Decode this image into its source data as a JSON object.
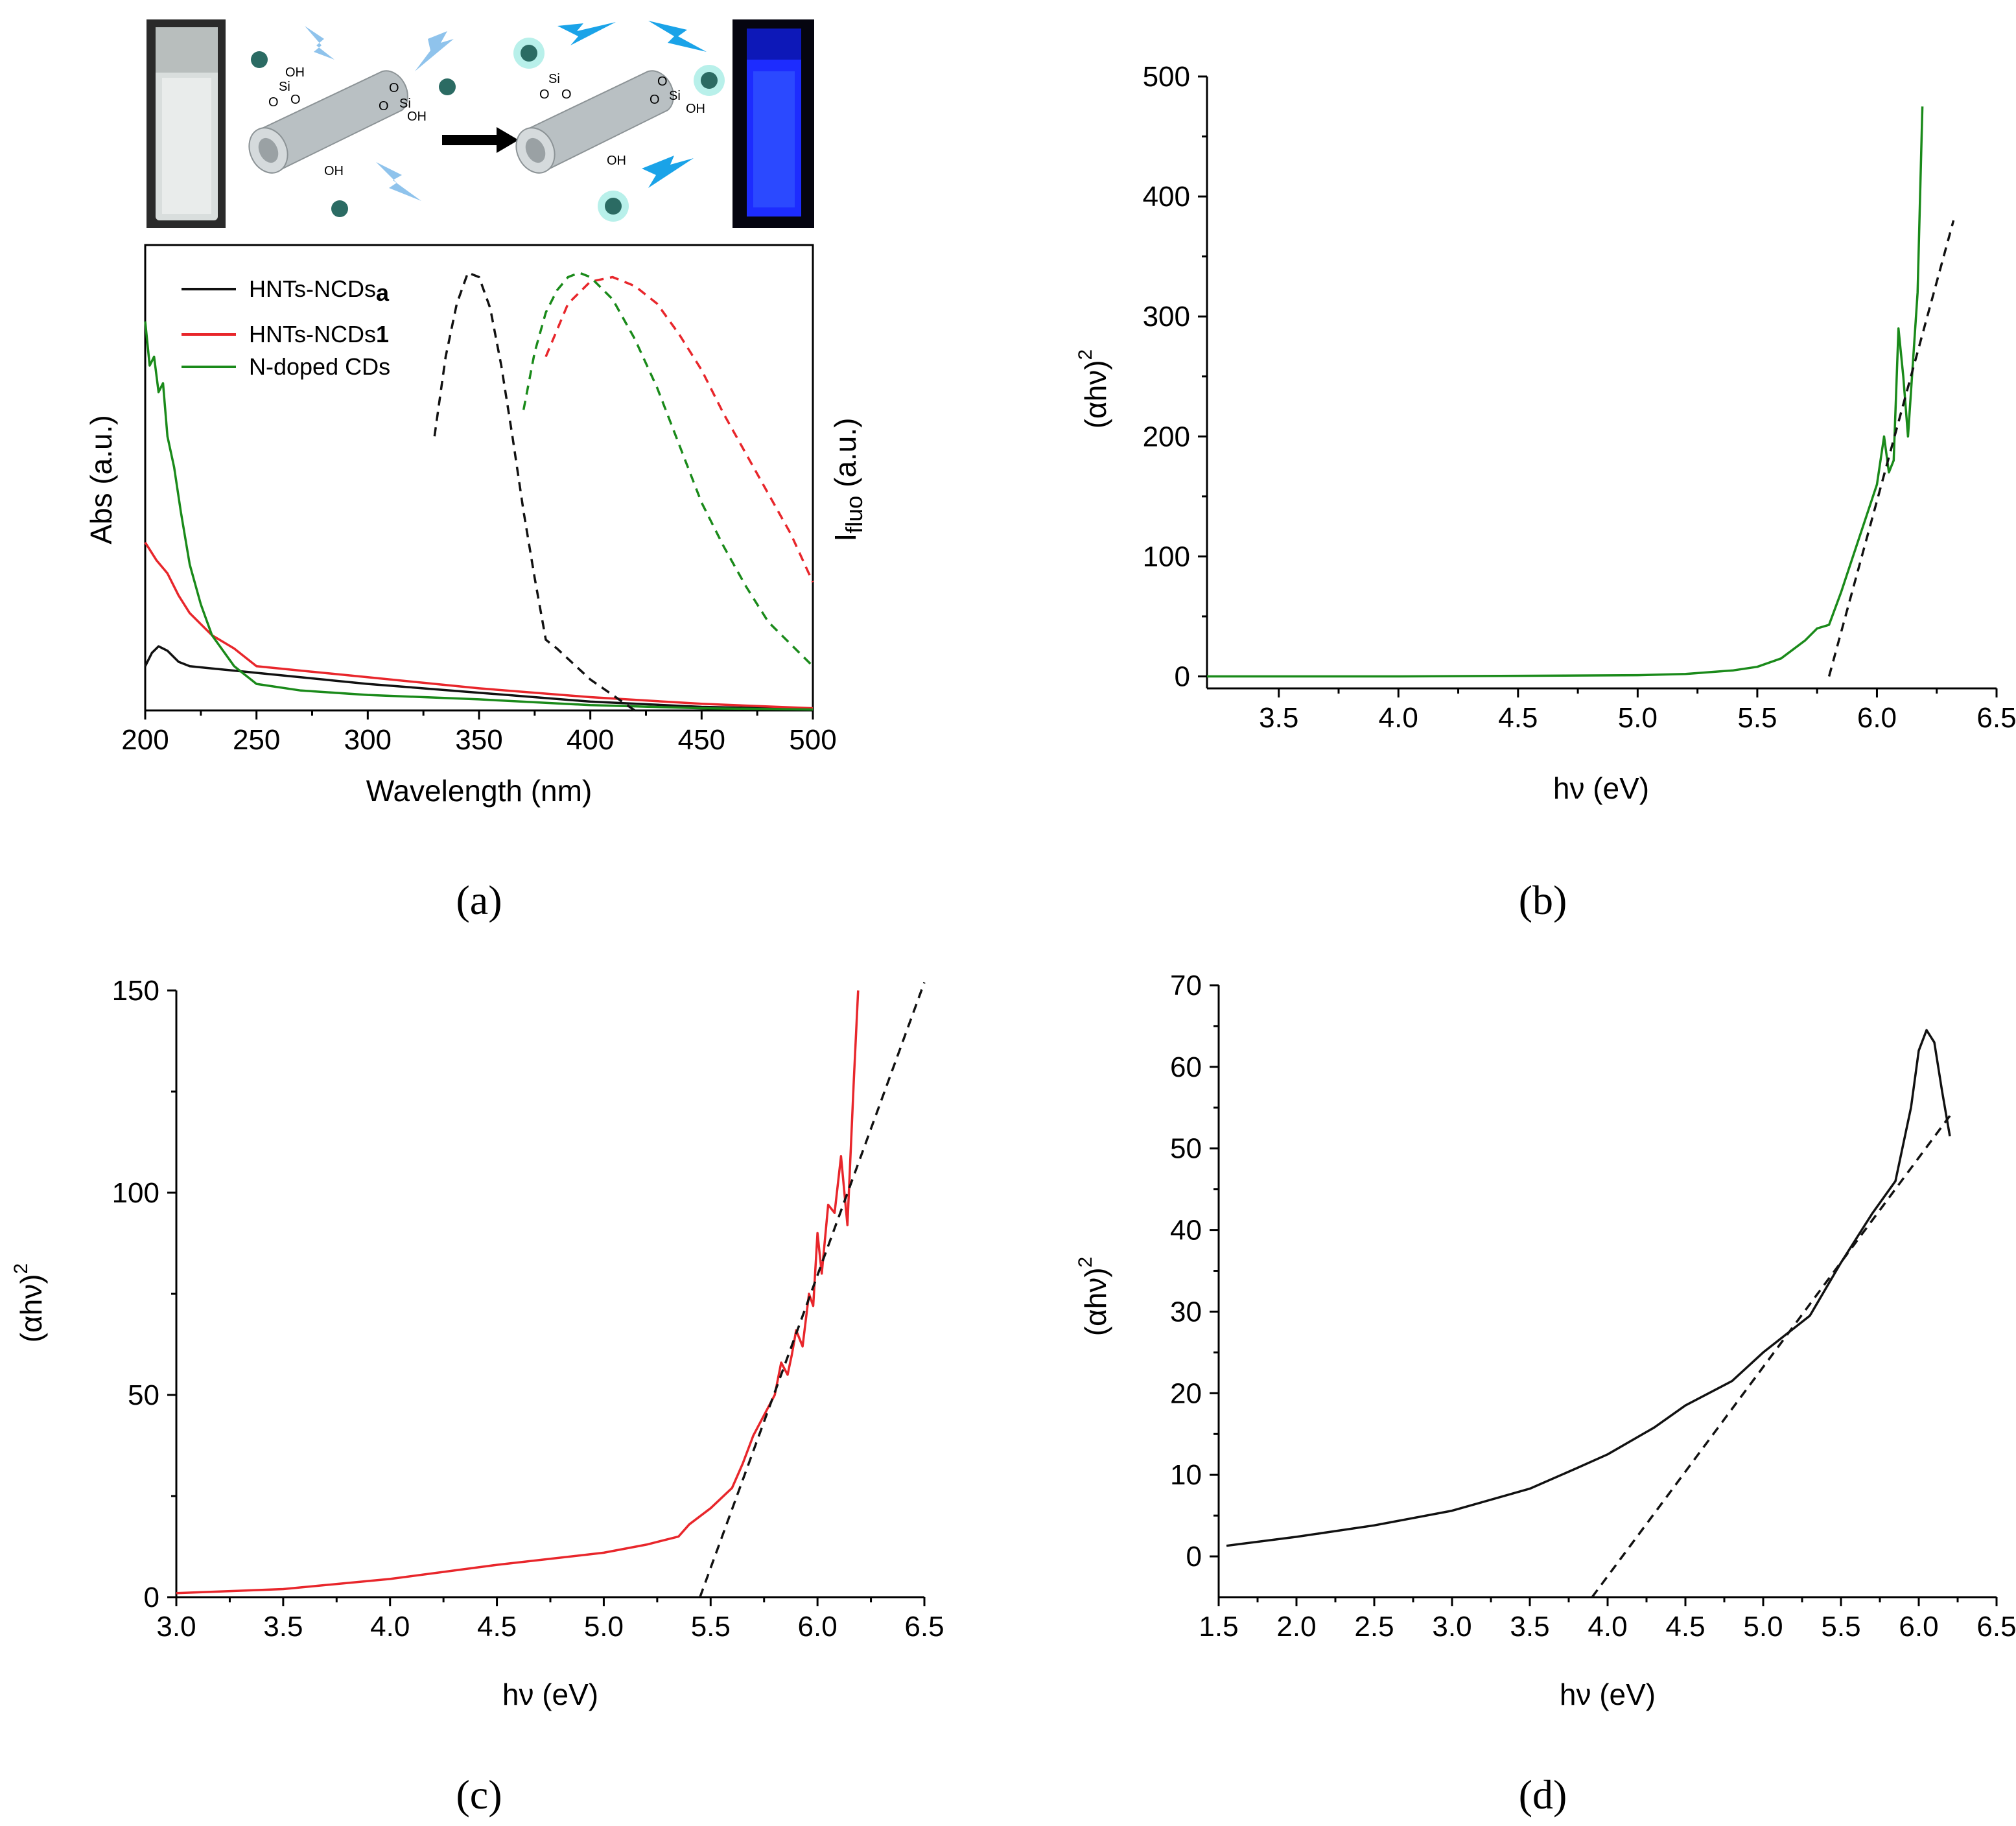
{
  "colors": {
    "black": "#111111",
    "red": "#e8262b",
    "green": "#1a8a1a",
    "fit": "#111111"
  },
  "illustration": {
    "chem_labels": [
      "OH",
      "Si",
      "O",
      "O",
      "OH",
      "O",
      "Si",
      "O",
      "OH",
      "Si",
      "O",
      "O",
      "OH",
      "O",
      "Si",
      "O",
      "OH"
    ]
  },
  "chart_data": [
    {
      "id": "a",
      "panel_label": "(a)",
      "type": "line",
      "title": "",
      "xlabel": "Wavelength (nm)",
      "ylabel": "Abs (a.u.)",
      "ylabel_right": "I",
      "ylabel_right_sub": "fluo",
      "ylabel_right_suffix": " (a.u.)",
      "xlim": [
        200,
        500
      ],
      "ylim": [
        0,
        1
      ],
      "xticks": [
        200,
        250,
        300,
        350,
        400,
        450,
        500
      ],
      "legend": [
        {
          "label": "HNTs-NCDs",
          "suffix": "a",
          "color": "#111111"
        },
        {
          "label": "HNTs-NCDs",
          "suffix": "1",
          "color": "#e8262b"
        },
        {
          "label": "N-doped CDs",
          "suffix": "",
          "color": "#1a8a1a"
        }
      ],
      "series": [
        {
          "name": "HNTs-NCDsa absorbance",
          "color": "#111111",
          "style": "solid",
          "x": [
            200,
            203,
            206,
            210,
            215,
            220,
            230,
            250,
            280,
            300,
            350,
            400,
            450,
            500
          ],
          "y": [
            0.1,
            0.13,
            0.145,
            0.135,
            0.11,
            0.1,
            0.095,
            0.085,
            0.07,
            0.06,
            0.04,
            0.02,
            0.008,
            0.003
          ]
        },
        {
          "name": "HNTs-NCDs1 absorbance",
          "color": "#e8262b",
          "style": "solid",
          "x": [
            200,
            205,
            210,
            215,
            220,
            230,
            240,
            250,
            270,
            300,
            350,
            400,
            450,
            500
          ],
          "y": [
            0.38,
            0.34,
            0.31,
            0.26,
            0.22,
            0.17,
            0.14,
            0.1,
            0.09,
            0.075,
            0.05,
            0.03,
            0.015,
            0.005
          ]
        },
        {
          "name": "N-doped CDs absorbance",
          "color": "#1a8a1a",
          "style": "solid",
          "x": [
            200,
            202,
            204,
            206,
            208,
            210,
            213,
            216,
            220,
            225,
            230,
            240,
            250,
            270,
            300,
            350,
            400,
            450,
            500
          ],
          "y": [
            0.88,
            0.78,
            0.8,
            0.72,
            0.74,
            0.62,
            0.55,
            0.45,
            0.33,
            0.24,
            0.17,
            0.1,
            0.06,
            0.045,
            0.035,
            0.025,
            0.012,
            0.005,
            0.002
          ]
        },
        {
          "name": "HNTs-NCDsa fluorescence",
          "color": "#111111",
          "style": "dashed",
          "x": [
            330,
            335,
            340,
            345,
            350,
            355,
            360,
            365,
            370,
            375,
            380,
            385,
            400,
            420
          ],
          "y": [
            0.62,
            0.8,
            0.92,
            0.99,
            0.98,
            0.91,
            0.78,
            0.62,
            0.45,
            0.3,
            0.16,
            0.14,
            0.07,
            0.0
          ]
        },
        {
          "name": "HNTs-NCDs1 fluorescence",
          "color": "#e8262b",
          "style": "dashed",
          "x": [
            380,
            390,
            400,
            410,
            420,
            430,
            440,
            450,
            460,
            470,
            480,
            490,
            500
          ],
          "y": [
            0.8,
            0.92,
            0.97,
            0.98,
            0.96,
            0.92,
            0.85,
            0.77,
            0.67,
            0.58,
            0.49,
            0.4,
            0.29
          ]
        },
        {
          "name": "N-doped CDs fluorescence",
          "color": "#1a8a1a",
          "style": "dashed",
          "x": [
            370,
            375,
            380,
            385,
            390,
            395,
            400,
            410,
            420,
            430,
            440,
            450,
            460,
            470,
            480,
            490,
            500
          ],
          "y": [
            0.68,
            0.81,
            0.9,
            0.95,
            0.98,
            0.99,
            0.98,
            0.93,
            0.84,
            0.73,
            0.6,
            0.47,
            0.37,
            0.28,
            0.2,
            0.15,
            0.1
          ]
        }
      ]
    },
    {
      "id": "b",
      "panel_label": "(b)",
      "type": "line",
      "title": "",
      "xlabel": "hν (eV)",
      "ylabel": "(αhν)",
      "ylabel_sup": "2",
      "xlim": [
        3.2,
        6.5
      ],
      "ylim": [
        -10,
        500
      ],
      "xticks": [
        3.5,
        4.0,
        4.5,
        5.0,
        5.5,
        6.0,
        6.5
      ],
      "yticks": [
        0,
        100,
        200,
        300,
        400,
        500
      ],
      "series": [
        {
          "name": "N-doped CDs",
          "color": "#1a8a1a",
          "style": "solid",
          "x": [
            3.2,
            4.0,
            4.5,
            5.0,
            5.2,
            5.4,
            5.5,
            5.6,
            5.7,
            5.75,
            5.8,
            5.85,
            5.9,
            5.95,
            6.0,
            6.03,
            6.05,
            6.07,
            6.09,
            6.11,
            6.13,
            6.15,
            6.17,
            6.19
          ],
          "y": [
            0,
            0,
            0.5,
            1,
            2,
            5,
            8,
            15,
            30,
            40,
            43,
            70,
            100,
            130,
            160,
            200,
            170,
            180,
            290,
            250,
            200,
            260,
            320,
            475
          ]
        },
        {
          "name": "linear fit",
          "color": "#111111",
          "style": "dashed",
          "x": [
            5.8,
            6.32
          ],
          "y": [
            0,
            380
          ]
        }
      ]
    },
    {
      "id": "c",
      "panel_label": "(c)",
      "type": "line",
      "title": "",
      "xlabel": "hν (eV)",
      "ylabel": "(αhν)",
      "ylabel_sup": "2",
      "xlim": [
        3.0,
        6.5
      ],
      "ylim": [
        0,
        150
      ],
      "xticks": [
        3.0,
        3.5,
        4.0,
        4.5,
        5.0,
        5.5,
        6.0,
        6.5
      ],
      "yticks": [
        0,
        50,
        100,
        150
      ],
      "series": [
        {
          "name": "HNTs-NCDs1",
          "color": "#e8262b",
          "style": "solid",
          "x": [
            3.0,
            3.5,
            4.0,
            4.5,
            5.0,
            5.2,
            5.35,
            5.4,
            5.5,
            5.6,
            5.65,
            5.7,
            5.75,
            5.8,
            5.83,
            5.86,
            5.88,
            5.9,
            5.93,
            5.96,
            5.98,
            6.0,
            6.02,
            6.05,
            6.08,
            6.11,
            6.14,
            6.17,
            6.19
          ],
          "y": [
            1,
            2,
            4.5,
            8,
            11,
            13,
            15,
            18,
            22,
            27,
            33,
            40,
            45,
            50,
            58,
            55,
            60,
            66,
            62,
            75,
            72,
            90,
            80,
            97,
            95,
            109,
            92,
            128,
            150
          ]
        },
        {
          "name": "linear fit",
          "color": "#111111",
          "style": "dashed",
          "x": [
            5.45,
            6.5
          ],
          "y": [
            0,
            152
          ]
        }
      ]
    },
    {
      "id": "d",
      "panel_label": "(d)",
      "type": "line",
      "title": "",
      "xlabel": "hν (eV)",
      "ylabel": "(αhν)",
      "ylabel_sup": "2",
      "xlim": [
        1.5,
        6.5
      ],
      "ylim": [
        -5,
        70
      ],
      "xticks": [
        1.5,
        2.0,
        2.5,
        3.0,
        3.5,
        4.0,
        4.5,
        5.0,
        5.5,
        6.0,
        6.5
      ],
      "yticks": [
        0,
        10,
        20,
        30,
        40,
        50,
        60,
        70
      ],
      "series": [
        {
          "name": "HNTs-NCDsa",
          "color": "#111111",
          "style": "solid",
          "x": [
            1.55,
            2.0,
            2.5,
            3.0,
            3.5,
            3.8,
            4.0,
            4.3,
            4.5,
            4.8,
            5.0,
            5.3,
            5.5,
            5.7,
            5.85,
            5.95,
            6.0,
            6.05,
            6.1,
            6.15,
            6.2
          ],
          "y": [
            1.3,
            2.4,
            3.8,
            5.6,
            8.3,
            10.8,
            12.5,
            15.8,
            18.5,
            21.5,
            25,
            29.5,
            36,
            42,
            46,
            55,
            62,
            64.5,
            63,
            57,
            51.5
          ]
        },
        {
          "name": "linear fit",
          "color": "#111111",
          "style": "dashed",
          "x": [
            3.9,
            6.2
          ],
          "y": [
            -5,
            54
          ]
        }
      ]
    }
  ]
}
